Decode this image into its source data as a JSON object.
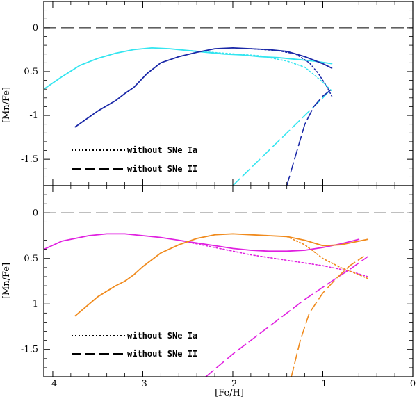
{
  "chart_data": [
    {
      "type": "line",
      "panel": "top",
      "xlabel": "[Fe/H]",
      "ylabel": "[Mn/Fe]",
      "xlim": [
        -4.1,
        0
      ],
      "ylim": [
        -1.8,
        0.3
      ],
      "xticks": [
        -4,
        -3,
        -2,
        -1,
        0
      ],
      "xtick_labels": [
        "-4",
        "-3",
        "-2",
        "-1",
        "0"
      ],
      "yticks": [
        0,
        -0.5,
        -1,
        -1.5
      ],
      "ytick_labels": [
        "0",
        "-0.5",
        "-1",
        "-1.5"
      ],
      "reference_line": {
        "y": 0,
        "style": "dashed",
        "color": "#000000"
      },
      "legend": [
        {
          "label": "without SNe Ia",
          "style": "dotted"
        },
        {
          "label": "without SNe II",
          "style": "dashed"
        }
      ],
      "series": [
        {
          "name": "cyan full",
          "color": "#33e5f0",
          "style": "solid",
          "x": [
            -4.1,
            -3.9,
            -3.7,
            -3.5,
            -3.3,
            -3.1,
            -2.9,
            -2.7,
            -2.5,
            -2.3,
            -2.1,
            -1.9,
            -1.7,
            -1.5,
            -1.3,
            -1.1,
            -0.9
          ],
          "y": [
            -0.7,
            -0.56,
            -0.43,
            -0.35,
            -0.29,
            -0.25,
            -0.23,
            -0.24,
            -0.26,
            -0.28,
            -0.3,
            -0.31,
            -0.33,
            -0.34,
            -0.36,
            -0.38,
            -0.41
          ]
        },
        {
          "name": "cyan without SNe Ia",
          "color": "#33e5f0",
          "style": "dotted",
          "x": [
            -2.5,
            -2.1,
            -1.7,
            -1.4,
            -1.2,
            -1.0,
            -0.9
          ],
          "y": [
            -0.26,
            -0.29,
            -0.32,
            -0.38,
            -0.45,
            -0.62,
            -0.72
          ]
        },
        {
          "name": "cyan without SNe II",
          "color": "#33e5f0",
          "style": "dashed",
          "x": [
            -2.0,
            -1.8,
            -1.6,
            -1.4,
            -1.2,
            -1.0,
            -0.9
          ],
          "y": [
            -1.8,
            -1.6,
            -1.4,
            -1.2,
            -1.0,
            -0.8,
            -0.69
          ]
        },
        {
          "name": "blue full",
          "color": "#1a28a8",
          "style": "solid",
          "x": [
            -3.75,
            -3.5,
            -3.3,
            -3.2,
            -3.1,
            -2.95,
            -2.8,
            -2.6,
            -2.4,
            -2.2,
            -2.0,
            -1.8,
            -1.6,
            -1.4,
            -1.2,
            -1.0,
            -0.9
          ],
          "y": [
            -1.13,
            -0.95,
            -0.83,
            -0.75,
            -0.68,
            -0.52,
            -0.4,
            -0.33,
            -0.28,
            -0.24,
            -0.23,
            -0.24,
            -0.25,
            -0.27,
            -0.33,
            -0.41,
            -0.46
          ]
        },
        {
          "name": "blue without SNe Ia",
          "color": "#1a28a8",
          "style": "dotted",
          "x": [
            -1.8,
            -1.5,
            -1.3,
            -1.15,
            -1.05,
            -0.95,
            -0.9
          ],
          "y": [
            -0.24,
            -0.26,
            -0.3,
            -0.4,
            -0.52,
            -0.68,
            -0.78
          ]
        },
        {
          "name": "blue without SNe II",
          "color": "#1a28a8",
          "style": "dashed",
          "x": [
            -1.4,
            -1.3,
            -1.2,
            -1.1,
            -1.0,
            -0.9
          ],
          "y": [
            -1.8,
            -1.45,
            -1.1,
            -0.9,
            -0.78,
            -0.7
          ]
        }
      ]
    },
    {
      "type": "line",
      "panel": "bottom",
      "xlabel": "[Fe/H]",
      "ylabel": "[Mn/Fe]",
      "xlim": [
        -4.1,
        0
      ],
      "ylim": [
        -1.8,
        0.3
      ],
      "xticks": [
        -4,
        -3,
        -2,
        -1,
        0
      ],
      "xtick_labels": [
        "-4",
        "-3",
        "-2",
        "-1",
        "0"
      ],
      "yticks": [
        0,
        -0.5,
        -1,
        -1.5
      ],
      "ytick_labels": [
        "0",
        "-0.5",
        "-1",
        "-1.5"
      ],
      "reference_line": {
        "y": 0,
        "style": "dashed",
        "color": "#000000"
      },
      "legend": [
        {
          "label": "without SNe Ia",
          "style": "dotted"
        },
        {
          "label": "without SNe II",
          "style": "dashed"
        }
      ],
      "series": [
        {
          "name": "magenta full",
          "color": "#e020e0",
          "style": "solid",
          "x": [
            -4.1,
            -3.9,
            -3.6,
            -3.4,
            -3.2,
            -3.0,
            -2.8,
            -2.6,
            -2.4,
            -2.2,
            -2.0,
            -1.8,
            -1.6,
            -1.4,
            -1.2,
            -1.0,
            -0.8,
            -0.6
          ],
          "y": [
            -0.4,
            -0.31,
            -0.25,
            -0.23,
            -0.23,
            -0.25,
            -0.27,
            -0.3,
            -0.33,
            -0.36,
            -0.39,
            -0.41,
            -0.42,
            -0.42,
            -0.41,
            -0.38,
            -0.34,
            -0.29
          ]
        },
        {
          "name": "magenta without SNe Ia",
          "color": "#e020e0",
          "style": "dotted",
          "x": [
            -2.6,
            -2.2,
            -1.8,
            -1.4,
            -1.0,
            -0.7,
            -0.5
          ],
          "y": [
            -0.3,
            -0.38,
            -0.46,
            -0.52,
            -0.58,
            -0.64,
            -0.7
          ]
        },
        {
          "name": "magenta without SNe II",
          "color": "#e020e0",
          "style": "dashed",
          "x": [
            -2.3,
            -2.0,
            -1.6,
            -1.2,
            -0.9,
            -0.7,
            -0.5
          ],
          "y": [
            -1.8,
            -1.55,
            -1.25,
            -0.95,
            -0.75,
            -0.62,
            -0.48
          ]
        },
        {
          "name": "orange full",
          "color": "#f08a1c",
          "style": "solid",
          "x": [
            -3.75,
            -3.5,
            -3.3,
            -3.2,
            -3.1,
            -3.0,
            -2.8,
            -2.6,
            -2.4,
            -2.2,
            -2.0,
            -1.8,
            -1.6,
            -1.4,
            -1.2,
            -1.0,
            -0.8,
            -0.6,
            -0.5
          ],
          "y": [
            -1.13,
            -0.92,
            -0.8,
            -0.75,
            -0.68,
            -0.59,
            -0.44,
            -0.35,
            -0.28,
            -0.24,
            -0.23,
            -0.24,
            -0.25,
            -0.26,
            -0.3,
            -0.36,
            -0.35,
            -0.31,
            -0.29
          ]
        },
        {
          "name": "orange without SNe Ia",
          "color": "#f08a1c",
          "style": "dotted",
          "x": [
            -1.4,
            -1.2,
            -1.0,
            -0.8,
            -0.6,
            -0.5
          ],
          "y": [
            -0.26,
            -0.35,
            -0.5,
            -0.6,
            -0.68,
            -0.72
          ]
        },
        {
          "name": "orange without SNe II",
          "color": "#f08a1c",
          "style": "dashed",
          "x": [
            -1.35,
            -1.25,
            -1.15,
            -1.0,
            -0.85,
            -0.7,
            -0.55
          ],
          "y": [
            -1.8,
            -1.4,
            -1.1,
            -0.88,
            -0.72,
            -0.58,
            -0.48
          ]
        }
      ]
    }
  ]
}
